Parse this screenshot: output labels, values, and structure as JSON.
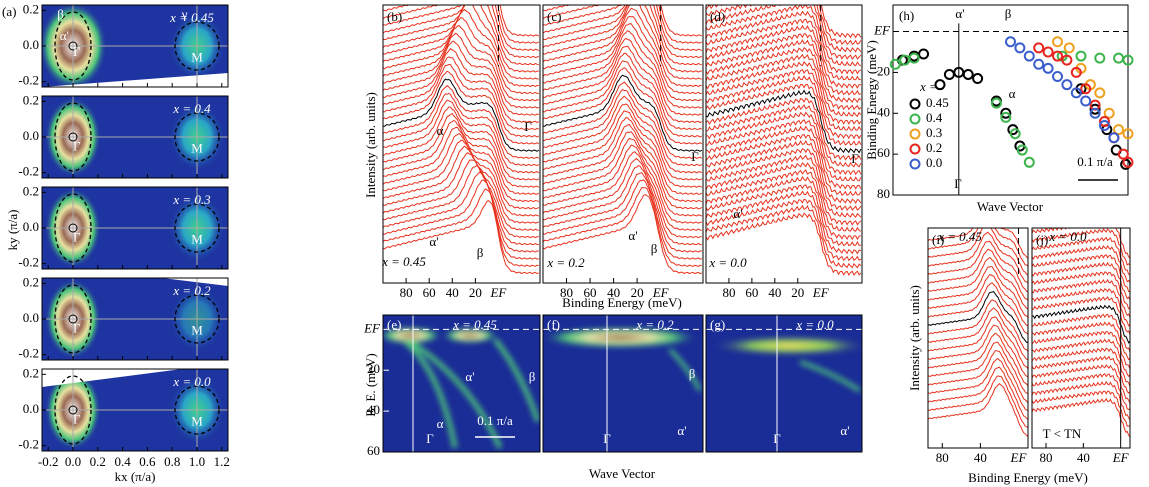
{
  "chart_data": [
    {
      "type": "map",
      "panel": "(a)",
      "xlabel": "kx (π/a)",
      "ylabel": "ky (π/a)",
      "xlim": [
        -0.25,
        1.25
      ],
      "ylim": [
        -0.23,
        0.23
      ],
      "xticks": [
        -0.2,
        {
          "value": 0,
          "label": "0.0"
        },
        0.2,
        0.4,
        0.6,
        0.8,
        {
          "value": 1,
          "label": "1.0"
        },
        1.2
      ],
      "yticks": [
        -0.2,
        {
          "value": 0,
          "label": "0.0"
        },
        0.2
      ],
      "maps": [
        {
          "label": "x = 0.45",
          "annotations": [
            "β",
            "α'",
            "Γ",
            "γ",
            "M"
          ]
        },
        {
          "label": "x = 0.4",
          "annotations": [
            "Γ",
            "M"
          ]
        },
        {
          "label": "x = 0.3",
          "annotations": [
            "Γ",
            "M"
          ]
        },
        {
          "label": "x = 0.2",
          "annotations": [
            "Γ",
            "M"
          ]
        },
        {
          "label": "x = 0.0",
          "annotations": [
            "Γ",
            "M"
          ]
        }
      ]
    },
    {
      "type": "edc",
      "panel": "(b)",
      "label": "x = 0.45",
      "ylabel": "Intensity (arb. units)",
      "annotations": [
        "α",
        "α'",
        "β",
        "Γ"
      ],
      "xlim": [
        100,
        -36
      ],
      "xticks": [
        80,
        60,
        40,
        20,
        {
          "value": 0,
          "label": "EF"
        }
      ]
    },
    {
      "type": "edc",
      "panel": "(c)",
      "label": "x = 0.2",
      "xlabel": "Binding Energy (meV)",
      "annotations": [
        "α'",
        "β",
        "Γ"
      ],
      "xlim": [
        100,
        -36
      ],
      "xticks": [
        80,
        60,
        40,
        20,
        {
          "value": 0,
          "label": "EF"
        }
      ]
    },
    {
      "type": "edc",
      "panel": "(d)",
      "label": "x = 0.0",
      "annotations": [
        "α'",
        "Γ"
      ],
      "xlim": [
        100,
        -36
      ],
      "xticks": [
        80,
        60,
        40,
        20,
        {
          "value": 0,
          "label": "EF"
        }
      ]
    },
    {
      "type": "scatter",
      "panel": "(h)",
      "xlabel": "Wave Vector",
      "ylabel": "Binding Energy (meV)",
      "legend_title": "x =",
      "annotations": [
        "α'",
        "β",
        "α",
        "Γ",
        "0.1 π/a"
      ],
      "xlim": [
        0,
        100
      ],
      "ylim": [
        80,
        -13
      ],
      "yticks": [
        {
          "value": 0,
          "label": "EF"
        },
        20,
        40,
        60,
        80
      ],
      "series": [
        {
          "name": "0.45",
          "color": "#000000",
          "x": [
            4,
            9,
            13,
            20,
            24,
            28,
            32,
            36,
            44,
            48,
            51,
            54,
            80,
            86,
            91,
            95,
            99
          ],
          "values": [
            14,
            12,
            11,
            26,
            21,
            20,
            21,
            23,
            34,
            40,
            48,
            56,
            28,
            38,
            48,
            58,
            65
          ]
        },
        {
          "name": "0.4",
          "color": "#3cb44b",
          "x": [
            1,
            5,
            9,
            44,
            48,
            52,
            55,
            58,
            72,
            80,
            88,
            96,
            100
          ],
          "values": [
            16,
            14,
            13,
            35,
            42,
            50,
            58,
            64,
            12,
            12,
            13,
            13,
            14
          ]
        },
        {
          "name": "0.3",
          "color": "#f0a020",
          "x": [
            70,
            75,
            80,
            84,
            88,
            92,
            96,
            100
          ],
          "values": [
            5,
            8,
            18,
            26,
            30,
            40,
            48,
            50
          ]
        },
        {
          "name": "0.2",
          "color": "#e6261f",
          "x": [
            62,
            66,
            70,
            74,
            78,
            82,
            86,
            90,
            94,
            98,
            100
          ],
          "values": [
            8,
            10,
            12,
            14,
            20,
            28,
            36,
            44,
            52,
            60,
            64
          ]
        },
        {
          "name": "0.0",
          "color": "#3a5fcd",
          "x": [
            50,
            54,
            58,
            62,
            66,
            70,
            74,
            78,
            82,
            86,
            90,
            94
          ],
          "values": [
            5,
            8,
            12,
            16,
            18,
            22,
            26,
            30,
            34,
            40,
            46,
            52
          ]
        }
      ]
    },
    {
      "type": "intensity",
      "panel": "(e)",
      "label": "x = 0.45",
      "ylabel": "B. E. (meV)",
      "annotations": [
        "α",
        "α'",
        "β",
        "Γ",
        "0.1 π/a"
      ],
      "ylim": [
        60,
        -7
      ],
      "yticks": [
        {
          "value": 0,
          "label": "EF"
        },
        20,
        40,
        60
      ]
    },
    {
      "type": "intensity",
      "panel": "(f)",
      "label": "x = 0.2",
      "xlabel": "Wave Vector",
      "annotations": [
        "β",
        "α'",
        "Γ"
      ],
      "ylim": [
        60,
        -7
      ]
    },
    {
      "type": "intensity",
      "panel": "(g)",
      "label": "x = 0.0",
      "annotations": [
        "α'",
        "Γ"
      ],
      "ylim": [
        60,
        -7
      ]
    },
    {
      "type": "edc",
      "panel": "(i)",
      "label": "x = 0.45",
      "ylabel": "Intensity (arb. units)",
      "xlabel": "Binding Energy (meV)",
      "annotations": [],
      "xlim": [
        95,
        -10
      ],
      "xticks": [
        80,
        40,
        {
          "value": 0,
          "label": "EF"
        }
      ]
    },
    {
      "type": "edc",
      "panel": "(j)",
      "label": "x = 0.0",
      "annotations": [
        "T < TN"
      ],
      "xlim": [
        95,
        -10
      ],
      "xticks": [
        80,
        40,
        {
          "value": 0,
          "label": "EF"
        }
      ]
    }
  ]
}
